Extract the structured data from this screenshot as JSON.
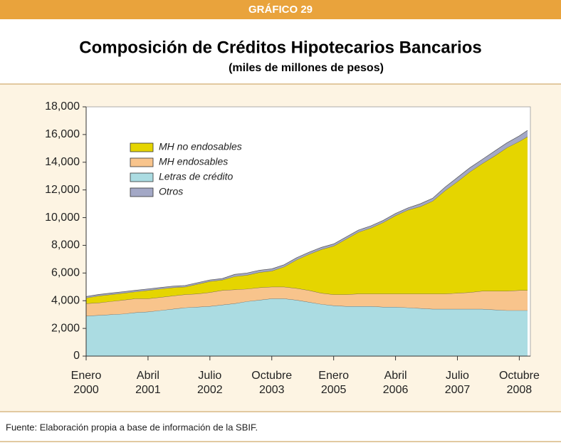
{
  "header": "GRÁFICO 29",
  "chart_data": {
    "type": "stacked_area",
    "title": "Composición de Créditos Hipotecarios Bancarios",
    "subtitle": "(miles de millones de pesos)",
    "x": [
      "2000-01",
      "2000-04",
      "2000-07",
      "2000-10",
      "2001-01",
      "2001-04",
      "2001-07",
      "2001-10",
      "2002-01",
      "2002-04",
      "2002-07",
      "2002-10",
      "2003-01",
      "2003-04",
      "2003-07",
      "2003-10",
      "2004-01",
      "2004-04",
      "2004-07",
      "2004-10",
      "2005-01",
      "2005-04",
      "2005-07",
      "2005-10",
      "2006-01",
      "2006-04",
      "2006-07",
      "2006-10",
      "2007-01",
      "2007-04",
      "2007-07",
      "2007-10",
      "2008-01",
      "2008-04",
      "2008-07",
      "2008-10",
      "2008-12"
    ],
    "xlim": [
      "2000-01",
      "2008-12"
    ],
    "xticks": [
      {
        "value": "2000-01",
        "label": "Enero 2000"
      },
      {
        "value": "2001-04",
        "label": "Abril 2001"
      },
      {
        "value": "2002-07",
        "label": "Julio 2002"
      },
      {
        "value": "2003-10",
        "label": "Octubre 2003"
      },
      {
        "value": "2005-01",
        "label": "Enero 2005"
      },
      {
        "value": "2006-04",
        "label": "Abril 2006"
      },
      {
        "value": "2007-07",
        "label": "Julio 2007"
      },
      {
        "value": "2008-10",
        "label": "Octubre 2008"
      }
    ],
    "ylim": [
      0,
      18000
    ],
    "yticks": [
      0,
      {
        "value": 2000,
        "label": "2,000"
      },
      {
        "value": 4000,
        "label": "4,000"
      },
      {
        "value": 6000,
        "label": "6,000"
      },
      {
        "value": 8000,
        "label": "8,000"
      },
      {
        "value": 10000,
        "label": "10,000"
      },
      {
        "value": 12000,
        "label": "12,000"
      },
      {
        "value": 14000,
        "label": "14,000"
      },
      {
        "value": 16000,
        "label": "16,000"
      },
      {
        "value": 18000,
        "label": "18,000"
      }
    ],
    "series": [
      {
        "name": "MH no endosables",
        "color": "#e5d500",
        "values": [
          400,
          500,
          500,
          500,
          500,
          600,
          600,
          600,
          550,
          700,
          800,
          750,
          950,
          1000,
          1100,
          1150,
          1450,
          2050,
          2600,
          3150,
          3500,
          4000,
          4450,
          4750,
          5150,
          5650,
          6050,
          6300,
          6700,
          7450,
          8050,
          8700,
          9200,
          9750,
          10350,
          10750,
          11100
        ]
      },
      {
        "name": "MH endosables",
        "color": "#f8c48c",
        "values": [
          900,
          900,
          950,
          1000,
          1000,
          950,
          950,
          950,
          950,
          950,
          1000,
          1050,
          1000,
          900,
          900,
          850,
          850,
          850,
          850,
          800,
          800,
          850,
          900,
          900,
          950,
          950,
          1000,
          1050,
          1100,
          1100,
          1150,
          1200,
          1300,
          1350,
          1400,
          1450,
          1450
        ]
      },
      {
        "name": "Letras de crédito",
        "color": "#abdce2",
        "values": [
          2900,
          2950,
          3000,
          3050,
          3150,
          3200,
          3300,
          3400,
          3500,
          3550,
          3600,
          3700,
          3800,
          3950,
          4050,
          4150,
          4150,
          4050,
          3900,
          3750,
          3650,
          3600,
          3600,
          3600,
          3550,
          3550,
          3500,
          3450,
          3400,
          3400,
          3400,
          3400,
          3400,
          3350,
          3300,
          3300,
          3300
        ]
      },
      {
        "name": "Otros",
        "color": "#a3a8c6",
        "values": [
          100,
          100,
          100,
          100,
          100,
          100,
          100,
          100,
          100,
          100,
          100,
          100,
          150,
          150,
          150,
          150,
          150,
          150,
          150,
          150,
          150,
          150,
          150,
          150,
          150,
          150,
          150,
          200,
          200,
          250,
          300,
          300,
          300,
          350,
          350,
          400,
          450
        ]
      }
    ]
  },
  "footer": "Fuente: Elaboración propia a base de información de la SBIF."
}
